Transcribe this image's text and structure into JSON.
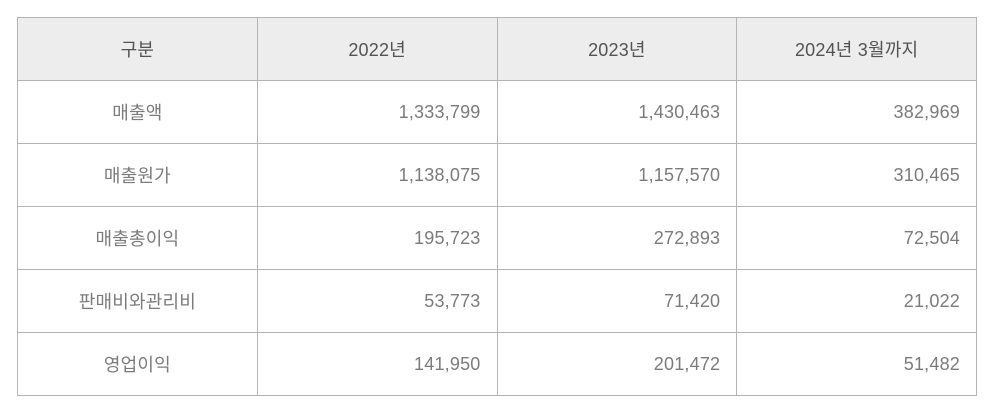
{
  "table": {
    "columns": [
      "구분",
      "2022년",
      "2023년",
      "2024년 3월까지"
    ],
    "rows": [
      {
        "label": "매출액",
        "values": [
          "1,333,799",
          "1,430,463",
          "382,969"
        ]
      },
      {
        "label": "매출원가",
        "values": [
          "1,138,075",
          "1,157,570",
          "310,465"
        ]
      },
      {
        "label": "매출총이익",
        "values": [
          "195,723",
          "272,893",
          "72,504"
        ]
      },
      {
        "label": "판매비와관리비",
        "values": [
          "53,773",
          "71,420",
          "21,022"
        ]
      },
      {
        "label": "영업이익",
        "values": [
          "141,950",
          "201,472",
          "51,482"
        ]
      }
    ]
  },
  "colors": {
    "header_background": "#ededed",
    "border": "#b4b4b4",
    "header_text": "#535353",
    "body_text": "#7b7b7b",
    "page_background": "#ffffff"
  },
  "chart_data": {
    "type": "table",
    "title": "",
    "columns": [
      "구분",
      "2022년",
      "2023년",
      "2024년 3월까지"
    ],
    "rows": [
      {
        "category": "매출액",
        "y2022": 1333799,
        "y2023": 1430463,
        "y2024_to_march": 382969
      },
      {
        "category": "매출원가",
        "y2022": 1138075,
        "y2023": 1157570,
        "y2024_to_march": 310465
      },
      {
        "category": "매출총이익",
        "y2022": 195723,
        "y2023": 272893,
        "y2024_to_march": 72504
      },
      {
        "category": "판매비와관리비",
        "y2022": 53773,
        "y2023": 71420,
        "y2024_to_march": 21022
      },
      {
        "category": "영업이익",
        "y2022": 141950,
        "y2023": 201472,
        "y2024_to_march": 51482
      }
    ]
  }
}
